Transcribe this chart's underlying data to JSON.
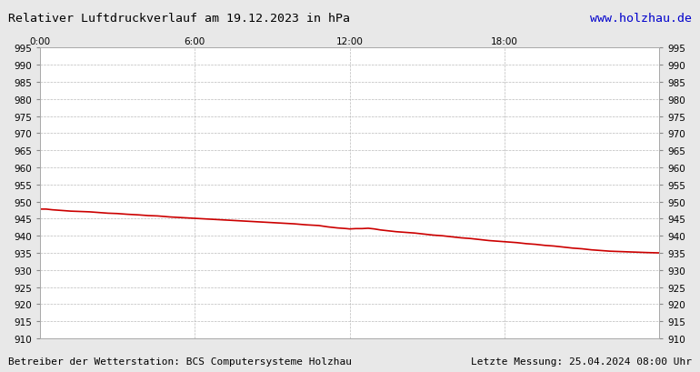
{
  "title": "Relativer Luftdruckverlauf am 19.12.2023 in hPa",
  "url": "www.holzhau.de",
  "footer_left": "Betreiber der Wetterstation: BCS Computersysteme Holzhau",
  "footer_right": "Letzte Messung: 25.04.2024 08:00 Uhr",
  "bg_color": "#e8e8e8",
  "plot_bg_color": "#ffffff",
  "line_color": "#cc0000",
  "grid_color": "#aaaaaa",
  "ylim": [
    910,
    995
  ],
  "ytick_step": 5,
  "xtick_labels": [
    "0:00",
    "6:00",
    "12:00",
    "18:00"
  ],
  "xtick_positions": [
    0,
    0.25,
    0.5,
    0.75
  ],
  "title_color": "#000000",
  "url_color": "#0000cc",
  "footer_color": "#000000",
  "pressure_data": [
    [
      0.0,
      947.8
    ],
    [
      0.01,
      947.8
    ],
    [
      0.02,
      947.6
    ],
    [
      0.035,
      947.4
    ],
    [
      0.05,
      947.2
    ],
    [
      0.065,
      947.1
    ],
    [
      0.08,
      947.0
    ],
    [
      0.095,
      946.8
    ],
    [
      0.11,
      946.6
    ],
    [
      0.125,
      946.5
    ],
    [
      0.14,
      946.3
    ],
    [
      0.16,
      946.1
    ],
    [
      0.175,
      945.9
    ],
    [
      0.19,
      945.8
    ],
    [
      0.21,
      945.5
    ],
    [
      0.23,
      945.3
    ],
    [
      0.25,
      945.1
    ],
    [
      0.27,
      944.9
    ],
    [
      0.29,
      944.7
    ],
    [
      0.31,
      944.5
    ],
    [
      0.33,
      944.3
    ],
    [
      0.35,
      944.1
    ],
    [
      0.37,
      943.9
    ],
    [
      0.39,
      943.7
    ],
    [
      0.41,
      943.5
    ],
    [
      0.43,
      943.2
    ],
    [
      0.45,
      943.0
    ],
    [
      0.465,
      942.6
    ],
    [
      0.48,
      942.3
    ],
    [
      0.495,
      942.1
    ],
    [
      0.5,
      942.0
    ],
    [
      0.51,
      942.1
    ],
    [
      0.52,
      942.1
    ],
    [
      0.53,
      942.2
    ],
    [
      0.54,
      942.0
    ],
    [
      0.55,
      941.7
    ],
    [
      0.56,
      941.5
    ],
    [
      0.575,
      941.2
    ],
    [
      0.59,
      941.0
    ],
    [
      0.605,
      940.8
    ],
    [
      0.62,
      940.5
    ],
    [
      0.635,
      940.2
    ],
    [
      0.65,
      940.0
    ],
    [
      0.665,
      939.7
    ],
    [
      0.68,
      939.4
    ],
    [
      0.695,
      939.2
    ],
    [
      0.71,
      938.9
    ],
    [
      0.725,
      938.6
    ],
    [
      0.74,
      938.4
    ],
    [
      0.755,
      938.2
    ],
    [
      0.77,
      938.0
    ],
    [
      0.785,
      937.7
    ],
    [
      0.8,
      937.5
    ],
    [
      0.815,
      937.2
    ],
    [
      0.83,
      937.0
    ],
    [
      0.845,
      936.7
    ],
    [
      0.86,
      936.4
    ],
    [
      0.875,
      936.2
    ],
    [
      0.89,
      935.9
    ],
    [
      0.905,
      935.7
    ],
    [
      0.92,
      935.5
    ],
    [
      0.935,
      935.4
    ],
    [
      0.95,
      935.3
    ],
    [
      0.965,
      935.2
    ],
    [
      0.98,
      935.1
    ],
    [
      1.0,
      935.0
    ]
  ]
}
